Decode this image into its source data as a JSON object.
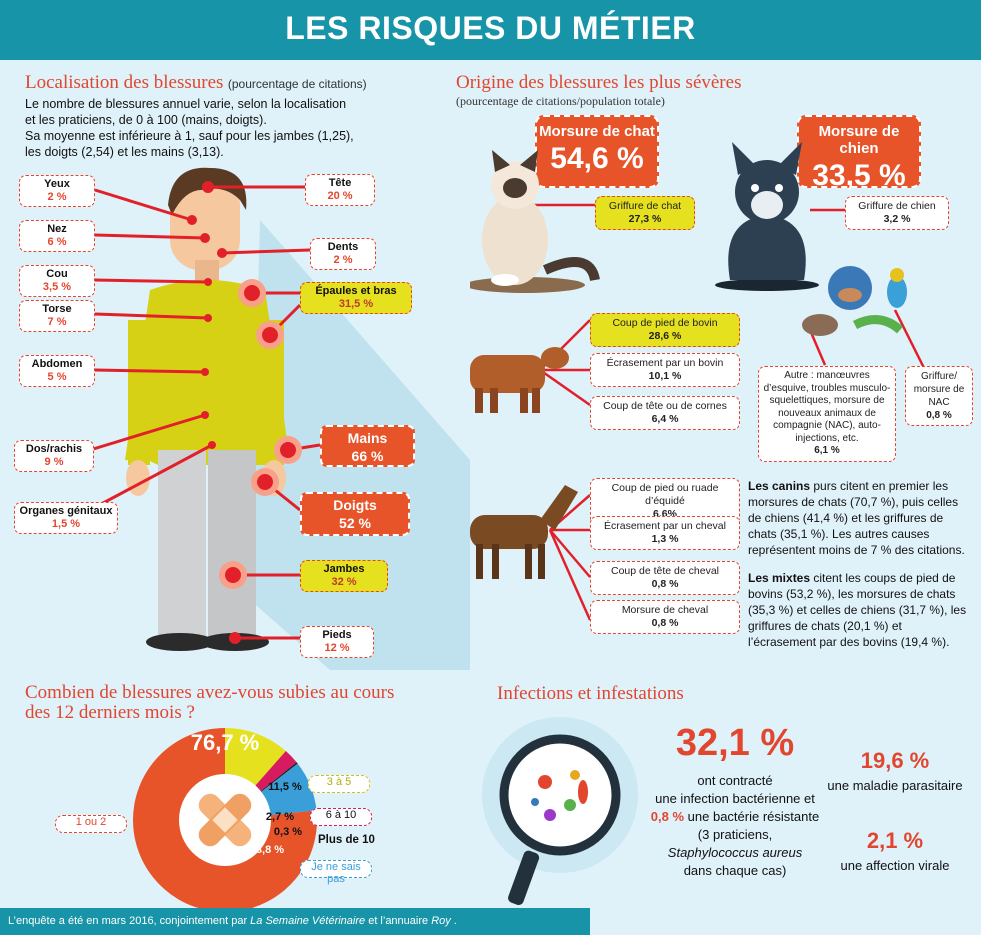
{
  "banner_title": "LES RISQUES DU MÉTIER",
  "location": {
    "title": "Localisation des blessures",
    "subtitle": "(pourcentage de citations)",
    "intro_lines": [
      "Le nombre de blessures annuel varie, selon la localisation",
      "et les praticiens, de 0 à 100 (mains, doigts).",
      "Sa moyenne est inférieure à 1, sauf pour les jambes (1,25),",
      "les doigts (2,54) et les mains (3,13)."
    ],
    "tags": [
      {
        "label": "Yeux",
        "value": "2 %"
      },
      {
        "label": "Nez",
        "value": "6 %"
      },
      {
        "label": "Cou",
        "value": "3,5 %"
      },
      {
        "label": "Torse",
        "value": "7 %"
      },
      {
        "label": "Abdomen",
        "value": "5 %"
      },
      {
        "label": "Dos/rachis",
        "value": "9 %"
      },
      {
        "label": "Organes génitaux",
        "value": "1,5 %"
      },
      {
        "label": "Tête",
        "value": "20 %"
      },
      {
        "label": "Dents",
        "value": "2 %"
      },
      {
        "label": "Épaules et bras",
        "value": "31,5 %"
      },
      {
        "label": "Mains",
        "value": "66 %"
      },
      {
        "label": "Doigts",
        "value": "52 %"
      },
      {
        "label": "Jambes",
        "value": "32 %"
      },
      {
        "label": "Pieds",
        "value": "12 %"
      }
    ]
  },
  "origin": {
    "title": "Origine des blessures les plus sévères",
    "subtitle": "(pourcentage de citations/population totale)",
    "cat": {
      "label": "Morsure de chat",
      "value": "54,6 %"
    },
    "dog": {
      "label": "Morsure de chien",
      "value": "33,5 %"
    },
    "boxes": [
      {
        "label": "Griffure de chat",
        "value": "27,3 %"
      },
      {
        "label": "Griffure de chien",
        "value": "3,2 %"
      },
      {
        "label": "Coup de pied de bovin",
        "value": "28,6 %"
      },
      {
        "label": "Écrasement par un bovin",
        "value": "10,1 %"
      },
      {
        "label": "Coup de tête ou de cornes",
        "value": "6,4 %"
      },
      {
        "label": "Autre : manœuvres d’esquive, troubles musculo-squelettiques, morsure de nouveaux animaux de compagnie (NAC), auto-injections, etc.",
        "value": "6,1 %"
      },
      {
        "label": "Griffure/ morsure de NAC",
        "value": "0,8 %"
      },
      {
        "label": "Coup de pied ou ruade d’équidé",
        "value": "6,6%"
      },
      {
        "label": "Écrasement par un cheval",
        "value": "1,3 %"
      },
      {
        "label": "Coup de tête de cheval",
        "value": "0,8 %"
      },
      {
        "label": "Morsure de cheval",
        "value": "0,8 %"
      }
    ],
    "canins_bold": "Les canins",
    "canins_text": " purs citent en premier les morsures de chats (70,7 %), puis celles de chiens (41,4 %) et les griffures de chats (35,1 %). Les autres causes représentent moins de 7 % des citations.",
    "mixtes_bold": "Les mixtes",
    "mixtes_text": " citent les coups de pied de bovins (53,2 %), les morsures de chats (35,3 %) et celles de chiens (31,7 %), les griffures de chats (20,1 %) et l’écrasement par des bovins (19,4 %)."
  },
  "count": {
    "title_line1": "Combien de blessures avez-vous subies au cours",
    "title_line2": "des 12 derniers mois ?",
    "chart_data": {
      "type": "pie",
      "slices": [
        {
          "label": "1 ou 2",
          "value": 76.7,
          "value_text": "76,7 %",
          "color": "#e8542a"
        },
        {
          "label": "3 à 5",
          "value": 11.5,
          "value_text": "11,5 %",
          "color": "#e6e11f"
        },
        {
          "label": "6 à 10",
          "value": 2.7,
          "value_text": "2,7 %",
          "color": "#d81b60"
        },
        {
          "label": "Plus de 10",
          "value": 0.3,
          "value_text": "0,3 %",
          "color": "#222222"
        },
        {
          "label": "Je ne sais pas",
          "value": 8.8,
          "value_text": "8,8 %",
          "color": "#3a9fd8"
        }
      ]
    }
  },
  "infections": {
    "title": "Infections et infestations",
    "main_value": "32,1 %",
    "lines": [
      "ont contracté",
      "une infection bactérienne et"
    ],
    "resist_value": "0,8 %",
    "resist_text": " une bactérie résistante",
    "lines2": [
      "(3 praticiens,"
    ],
    "species": "Staphylococcus aureus",
    "lines3": [
      "dans chaque cas)"
    ],
    "parasite_value": "19,6 %",
    "parasite_text": "une maladie parasitaire",
    "viral_value": "2,1 %",
    "viral_text": "une affection virale"
  },
  "footer": {
    "prefix": "L’enquête a été en mars 2016, conjointement par ",
    "source1": "La Semaine Vétérinaire",
    "middle": " et l’annuaire ",
    "source2": "Roy",
    "suffix": " ."
  },
  "colors": {
    "accent": "#e2462f",
    "banner": "#1794a8",
    "yellow": "#e6e11f",
    "background": "#dff1f9"
  }
}
